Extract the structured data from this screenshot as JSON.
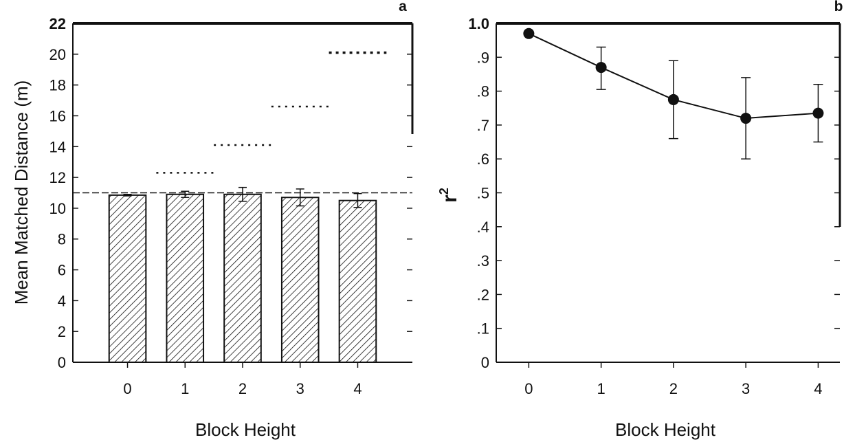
{
  "chart_data": [
    {
      "panel_label": "a",
      "type": "bar",
      "xlabel": "Block Height",
      "ylabel": "Mean Matched Distance (m)",
      "categories": [
        "0",
        "1",
        "2",
        "3",
        "4"
      ],
      "values": [
        10.85,
        10.9,
        10.9,
        10.7,
        10.5
      ],
      "error": [
        0.05,
        0.2,
        0.45,
        0.55,
        0.45
      ],
      "ylim": [
        0,
        22
      ],
      "yticks": [
        "0",
        "2",
        "4",
        "6",
        "8",
        "10",
        "12",
        "14",
        "16",
        "18",
        "20",
        "22"
      ],
      "reference_line": 11,
      "dotted_levels": [
        {
          "x_from": 0.5,
          "x_to": 1.5,
          "y": 12.3
        },
        {
          "x_from": 1.5,
          "x_to": 2.5,
          "y": 14.1
        },
        {
          "x_from": 2.5,
          "x_to": 3.5,
          "y": 16.6
        },
        {
          "x_from": 3.5,
          "x_to": 4.5,
          "y": 20.1
        }
      ],
      "bar_pattern": "diagonal-hatch"
    },
    {
      "panel_label": "b",
      "type": "line",
      "xlabel": "Block Height",
      "ylabel_main": "r",
      "ylabel_sup": "2",
      "x": [
        0,
        1,
        2,
        3,
        4
      ],
      "y": [
        0.97,
        0.87,
        0.775,
        0.72,
        0.735
      ],
      "err_upper": [
        0.97,
        0.93,
        0.89,
        0.84,
        0.82
      ],
      "err_lower": [
        0.97,
        0.805,
        0.66,
        0.6,
        0.65
      ],
      "xticks": [
        "0",
        "1",
        "2",
        "3",
        "4"
      ],
      "ylim": [
        0,
        1.0
      ],
      "yticks": [
        "0",
        ".1",
        ".2",
        ".3",
        ".4",
        ".5",
        ".6",
        ".7",
        ".8",
        ".9",
        "1.0"
      ]
    }
  ]
}
